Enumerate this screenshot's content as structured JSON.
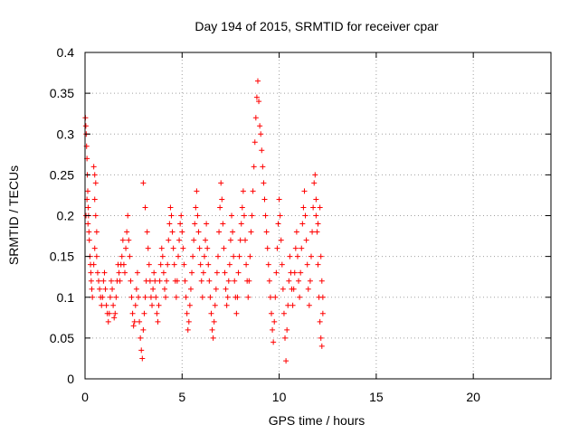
{
  "chart_data": {
    "type": "scatter",
    "title": "Day 194 of 2015, SRMTID for receiver cpar",
    "xlabel": "GPS time / hours",
    "ylabel": "SRMTID / TECUs",
    "xlim": [
      0,
      24
    ],
    "ylim": [
      0,
      0.4
    ],
    "xticks": [
      0,
      5,
      10,
      15,
      20
    ],
    "xtick_labels": [
      "0",
      "5",
      "10",
      "15",
      "20"
    ],
    "yticks": [
      0,
      0.05,
      0.1,
      0.15,
      0.2,
      0.25,
      0.3,
      0.35,
      0.4
    ],
    "ytick_labels": [
      "0",
      "0.05",
      "0.1",
      "0.15",
      "0.2",
      "0.25",
      "0.3",
      "0.35",
      "0.4"
    ],
    "grid": true,
    "marker": "+",
    "series": [
      {
        "name": "SRMTID",
        "color": "#ff0000",
        "points": [
          [
            0.02,
            0.32
          ],
          [
            0.04,
            0.31
          ],
          [
            0.06,
            0.3
          ],
          [
            0.08,
            0.285
          ],
          [
            0.1,
            0.27
          ],
          [
            0.12,
            0.25
          ],
          [
            0.14,
            0.23
          ],
          [
            0.16,
            0.21
          ],
          [
            0.18,
            0.2
          ],
          [
            0.2,
            0.18
          ],
          [
            0.22,
            0.17
          ],
          [
            0.25,
            0.15
          ],
          [
            0.28,
            0.14
          ],
          [
            0.3,
            0.13
          ],
          [
            0.32,
            0.12
          ],
          [
            0.35,
            0.11
          ],
          [
            0.38,
            0.1
          ],
          [
            0.05,
            0.2
          ],
          [
            0.1,
            0.22
          ],
          [
            0.15,
            0.19
          ],
          [
            0.45,
            0.26
          ],
          [
            0.5,
            0.25
          ],
          [
            0.55,
            0.24
          ],
          [
            0.5,
            0.22
          ],
          [
            0.55,
            0.2
          ],
          [
            0.6,
            0.18
          ],
          [
            0.5,
            0.16
          ],
          [
            0.45,
            0.14
          ],
          [
            0.6,
            0.15
          ],
          [
            0.65,
            0.13
          ],
          [
            0.7,
            0.12
          ],
          [
            0.75,
            0.11
          ],
          [
            0.8,
            0.1
          ],
          [
            0.85,
            0.09
          ],
          [
            0.9,
            0.1
          ],
          [
            0.95,
            0.12
          ],
          [
            1.0,
            0.13
          ],
          [
            1.05,
            0.11
          ],
          [
            1.1,
            0.09
          ],
          [
            1.15,
            0.08
          ],
          [
            1.2,
            0.07
          ],
          [
            1.25,
            0.08
          ],
          [
            1.3,
            0.1
          ],
          [
            1.35,
            0.12
          ],
          [
            1.4,
            0.11
          ],
          [
            1.45,
            0.09
          ],
          [
            1.5,
            0.075
          ],
          [
            1.55,
            0.08
          ],
          [
            1.6,
            0.1
          ],
          [
            1.65,
            0.12
          ],
          [
            1.7,
            0.14
          ],
          [
            1.75,
            0.13
          ],
          [
            1.8,
            0.12
          ],
          [
            1.85,
            0.14
          ],
          [
            1.9,
            0.15
          ],
          [
            1.95,
            0.17
          ],
          [
            2.0,
            0.14
          ],
          [
            2.05,
            0.13
          ],
          [
            2.1,
            0.16
          ],
          [
            2.15,
            0.18
          ],
          [
            2.2,
            0.2
          ],
          [
            2.25,
            0.17
          ],
          [
            2.3,
            0.15
          ],
          [
            2.35,
            0.12
          ],
          [
            2.4,
            0.1
          ],
          [
            2.45,
            0.08
          ],
          [
            2.5,
            0.065
          ],
          [
            2.55,
            0.07
          ],
          [
            2.6,
            0.09
          ],
          [
            2.65,
            0.11
          ],
          [
            2.7,
            0.13
          ],
          [
            2.75,
            0.1
          ],
          [
            2.8,
            0.07
          ],
          [
            2.85,
            0.05
          ],
          [
            2.9,
            0.035
          ],
          [
            2.95,
            0.025
          ],
          [
            3.0,
            0.06
          ],
          [
            3.05,
            0.08
          ],
          [
            3.1,
            0.1
          ],
          [
            3.15,
            0.12
          ],
          [
            3.0,
            0.24
          ],
          [
            3.1,
            0.21
          ],
          [
            3.2,
            0.18
          ],
          [
            3.25,
            0.16
          ],
          [
            3.3,
            0.14
          ],
          [
            3.35,
            0.12
          ],
          [
            3.4,
            0.1
          ],
          [
            3.45,
            0.09
          ],
          [
            3.5,
            0.11
          ],
          [
            3.55,
            0.13
          ],
          [
            3.6,
            0.12
          ],
          [
            3.65,
            0.1
          ],
          [
            3.7,
            0.08
          ],
          [
            3.75,
            0.07
          ],
          [
            3.8,
            0.09
          ],
          [
            3.85,
            0.12
          ],
          [
            3.9,
            0.14
          ],
          [
            3.95,
            0.16
          ],
          [
            4.0,
            0.15
          ],
          [
            4.05,
            0.13
          ],
          [
            4.1,
            0.11
          ],
          [
            4.15,
            0.1
          ],
          [
            4.2,
            0.12
          ],
          [
            4.25,
            0.14
          ],
          [
            4.3,
            0.17
          ],
          [
            4.35,
            0.19
          ],
          [
            4.4,
            0.21
          ],
          [
            4.45,
            0.2
          ],
          [
            4.5,
            0.18
          ],
          [
            4.55,
            0.16
          ],
          [
            4.6,
            0.14
          ],
          [
            4.65,
            0.12
          ],
          [
            4.7,
            0.1
          ],
          [
            4.75,
            0.12
          ],
          [
            4.8,
            0.15
          ],
          [
            4.85,
            0.17
          ],
          [
            4.9,
            0.19
          ],
          [
            4.95,
            0.2
          ],
          [
            5.0,
            0.18
          ],
          [
            5.05,
            0.16
          ],
          [
            5.1,
            0.14
          ],
          [
            5.15,
            0.12
          ],
          [
            5.2,
            0.1
          ],
          [
            5.25,
            0.08
          ],
          [
            5.3,
            0.06
          ],
          [
            5.35,
            0.07
          ],
          [
            5.4,
            0.09
          ],
          [
            5.45,
            0.11
          ],
          [
            5.5,
            0.13
          ],
          [
            5.55,
            0.15
          ],
          [
            5.6,
            0.17
          ],
          [
            5.65,
            0.19
          ],
          [
            5.7,
            0.21
          ],
          [
            5.75,
            0.23
          ],
          [
            5.8,
            0.2
          ],
          [
            5.85,
            0.18
          ],
          [
            5.9,
            0.16
          ],
          [
            5.95,
            0.14
          ],
          [
            6.0,
            0.12
          ],
          [
            6.05,
            0.1
          ],
          [
            6.1,
            0.13
          ],
          [
            6.15,
            0.15
          ],
          [
            6.2,
            0.17
          ],
          [
            6.25,
            0.19
          ],
          [
            6.3,
            0.16
          ],
          [
            6.35,
            0.14
          ],
          [
            6.4,
            0.12
          ],
          [
            6.45,
            0.1
          ],
          [
            6.5,
            0.08
          ],
          [
            6.55,
            0.06
          ],
          [
            6.6,
            0.05
          ],
          [
            6.65,
            0.07
          ],
          [
            6.7,
            0.09
          ],
          [
            6.75,
            0.11
          ],
          [
            6.8,
            0.13
          ],
          [
            6.85,
            0.15
          ],
          [
            6.9,
            0.18
          ],
          [
            6.95,
            0.21
          ],
          [
            7.0,
            0.24
          ],
          [
            7.05,
            0.22
          ],
          [
            7.1,
            0.19
          ],
          [
            7.15,
            0.16
          ],
          [
            7.2,
            0.13
          ],
          [
            7.25,
            0.11
          ],
          [
            7.3,
            0.09
          ],
          [
            7.35,
            0.1
          ],
          [
            7.4,
            0.12
          ],
          [
            7.45,
            0.14
          ],
          [
            7.5,
            0.17
          ],
          [
            7.55,
            0.2
          ],
          [
            7.6,
            0.18
          ],
          [
            7.65,
            0.15
          ],
          [
            7.7,
            0.12
          ],
          [
            7.75,
            0.1
          ],
          [
            7.8,
            0.08
          ],
          [
            7.85,
            0.1
          ],
          [
            7.9,
            0.13
          ],
          [
            7.95,
            0.15
          ],
          [
            8.0,
            0.17
          ],
          [
            8.05,
            0.19
          ],
          [
            8.1,
            0.21
          ],
          [
            8.15,
            0.23
          ],
          [
            8.2,
            0.2
          ],
          [
            8.25,
            0.17
          ],
          [
            8.3,
            0.14
          ],
          [
            8.35,
            0.12
          ],
          [
            8.4,
            0.1
          ],
          [
            8.45,
            0.12
          ],
          [
            8.5,
            0.15
          ],
          [
            8.55,
            0.18
          ],
          [
            8.6,
            0.2
          ],
          [
            8.65,
            0.23
          ],
          [
            8.7,
            0.26
          ],
          [
            8.75,
            0.29
          ],
          [
            8.8,
            0.32
          ],
          [
            8.85,
            0.345
          ],
          [
            8.9,
            0.365
          ],
          [
            8.95,
            0.34
          ],
          [
            9.0,
            0.31
          ],
          [
            9.05,
            0.3
          ],
          [
            9.1,
            0.28
          ],
          [
            9.15,
            0.26
          ],
          [
            9.2,
            0.24
          ],
          [
            9.25,
            0.22
          ],
          [
            9.3,
            0.2
          ],
          [
            9.35,
            0.18
          ],
          [
            9.4,
            0.16
          ],
          [
            9.45,
            0.14
          ],
          [
            9.5,
            0.12
          ],
          [
            9.55,
            0.1
          ],
          [
            9.6,
            0.08
          ],
          [
            9.65,
            0.06
          ],
          [
            9.7,
            0.045
          ],
          [
            9.75,
            0.07
          ],
          [
            9.8,
            0.1
          ],
          [
            9.85,
            0.13
          ],
          [
            9.9,
            0.16
          ],
          [
            9.95,
            0.19
          ],
          [
            10.0,
            0.22
          ],
          [
            10.05,
            0.2
          ],
          [
            10.1,
            0.17
          ],
          [
            10.15,
            0.14
          ],
          [
            10.2,
            0.11
          ],
          [
            10.25,
            0.08
          ],
          [
            10.3,
            0.05
          ],
          [
            10.35,
            0.022
          ],
          [
            10.4,
            0.06
          ],
          [
            10.45,
            0.09
          ],
          [
            10.5,
            0.12
          ],
          [
            10.55,
            0.15
          ],
          [
            10.6,
            0.13
          ],
          [
            10.65,
            0.11
          ],
          [
            10.7,
            0.09
          ],
          [
            10.75,
            0.11
          ],
          [
            10.8,
            0.13
          ],
          [
            10.85,
            0.16
          ],
          [
            10.9,
            0.18
          ],
          [
            10.95,
            0.15
          ],
          [
            11.0,
            0.12
          ],
          [
            11.05,
            0.1
          ],
          [
            11.1,
            0.13
          ],
          [
            11.15,
            0.16
          ],
          [
            11.2,
            0.19
          ],
          [
            11.25,
            0.21
          ],
          [
            11.3,
            0.23
          ],
          [
            11.35,
            0.2
          ],
          [
            11.4,
            0.17
          ],
          [
            11.45,
            0.14
          ],
          [
            11.5,
            0.11
          ],
          [
            11.55,
            0.09
          ],
          [
            11.6,
            0.12
          ],
          [
            11.65,
            0.15
          ],
          [
            11.7,
            0.18
          ],
          [
            11.75,
            0.21
          ],
          [
            11.8,
            0.24
          ],
          [
            11.85,
            0.25
          ],
          [
            11.9,
            0.22
          ],
          [
            11.95,
            0.18
          ],
          [
            12.0,
            0.14
          ],
          [
            12.05,
            0.1
          ],
          [
            12.1,
            0.07
          ],
          [
            12.15,
            0.05
          ],
          [
            12.2,
            0.04
          ],
          [
            12.25,
            0.08
          ],
          [
            12.1,
            0.21
          ],
          [
            11.9,
            0.2
          ],
          [
            12.0,
            0.19
          ],
          [
            12.15,
            0.15
          ],
          [
            12.2,
            0.12
          ],
          [
            12.25,
            0.1
          ]
        ]
      }
    ]
  }
}
